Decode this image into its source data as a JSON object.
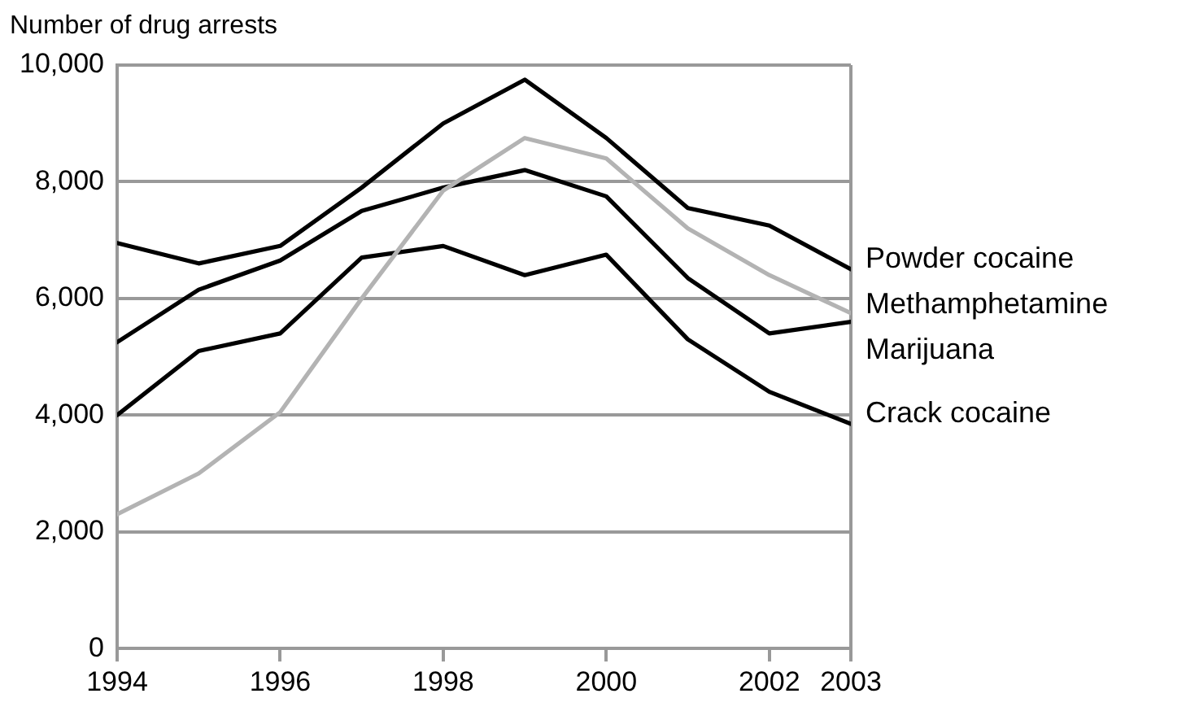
{
  "chart_data": {
    "type": "line",
    "ylabel": "Number of drug arrests",
    "x": [
      1994,
      1995,
      1996,
      1997,
      1998,
      1999,
      2000,
      2001,
      2002,
      2003
    ],
    "xlim": [
      1994,
      2003
    ],
    "xticks": [
      1994,
      1996,
      1998,
      2000,
      2002,
      2003
    ],
    "ylim": [
      0,
      10000
    ],
    "yticks": [
      {
        "value": 0,
        "label": "0"
      },
      {
        "value": 2000,
        "label": "2,000"
      },
      {
        "value": 4000,
        "label": "4,000"
      },
      {
        "value": 6000,
        "label": "6,000"
      },
      {
        "value": 8000,
        "label": "8,000"
      },
      {
        "value": 10000,
        "label": "10,000"
      }
    ],
    "grid": "y",
    "legend": false,
    "marker": "none",
    "line_style": "solid",
    "series": [
      {
        "name": "Powder cocaine",
        "color": "#000000",
        "values": [
          6950,
          6600,
          6900,
          7900,
          9000,
          9750,
          8750,
          7550,
          7250,
          6500
        ]
      },
      {
        "name": "Methamphetamine",
        "color": "#b3b3b3",
        "values": [
          2300,
          3000,
          4050,
          6000,
          7850,
          8750,
          8400,
          7200,
          6400,
          5750
        ]
      },
      {
        "name": "Marijuana",
        "color": "#000000",
        "values": [
          5250,
          6150,
          6650,
          7500,
          7900,
          8200,
          7750,
          6350,
          5400,
          5600
        ]
      },
      {
        "name": "Crack cocaine",
        "color": "#000000",
        "values": [
          4000,
          5100,
          5400,
          6700,
          6900,
          6400,
          6750,
          5300,
          4400,
          3850
        ]
      }
    ]
  }
}
